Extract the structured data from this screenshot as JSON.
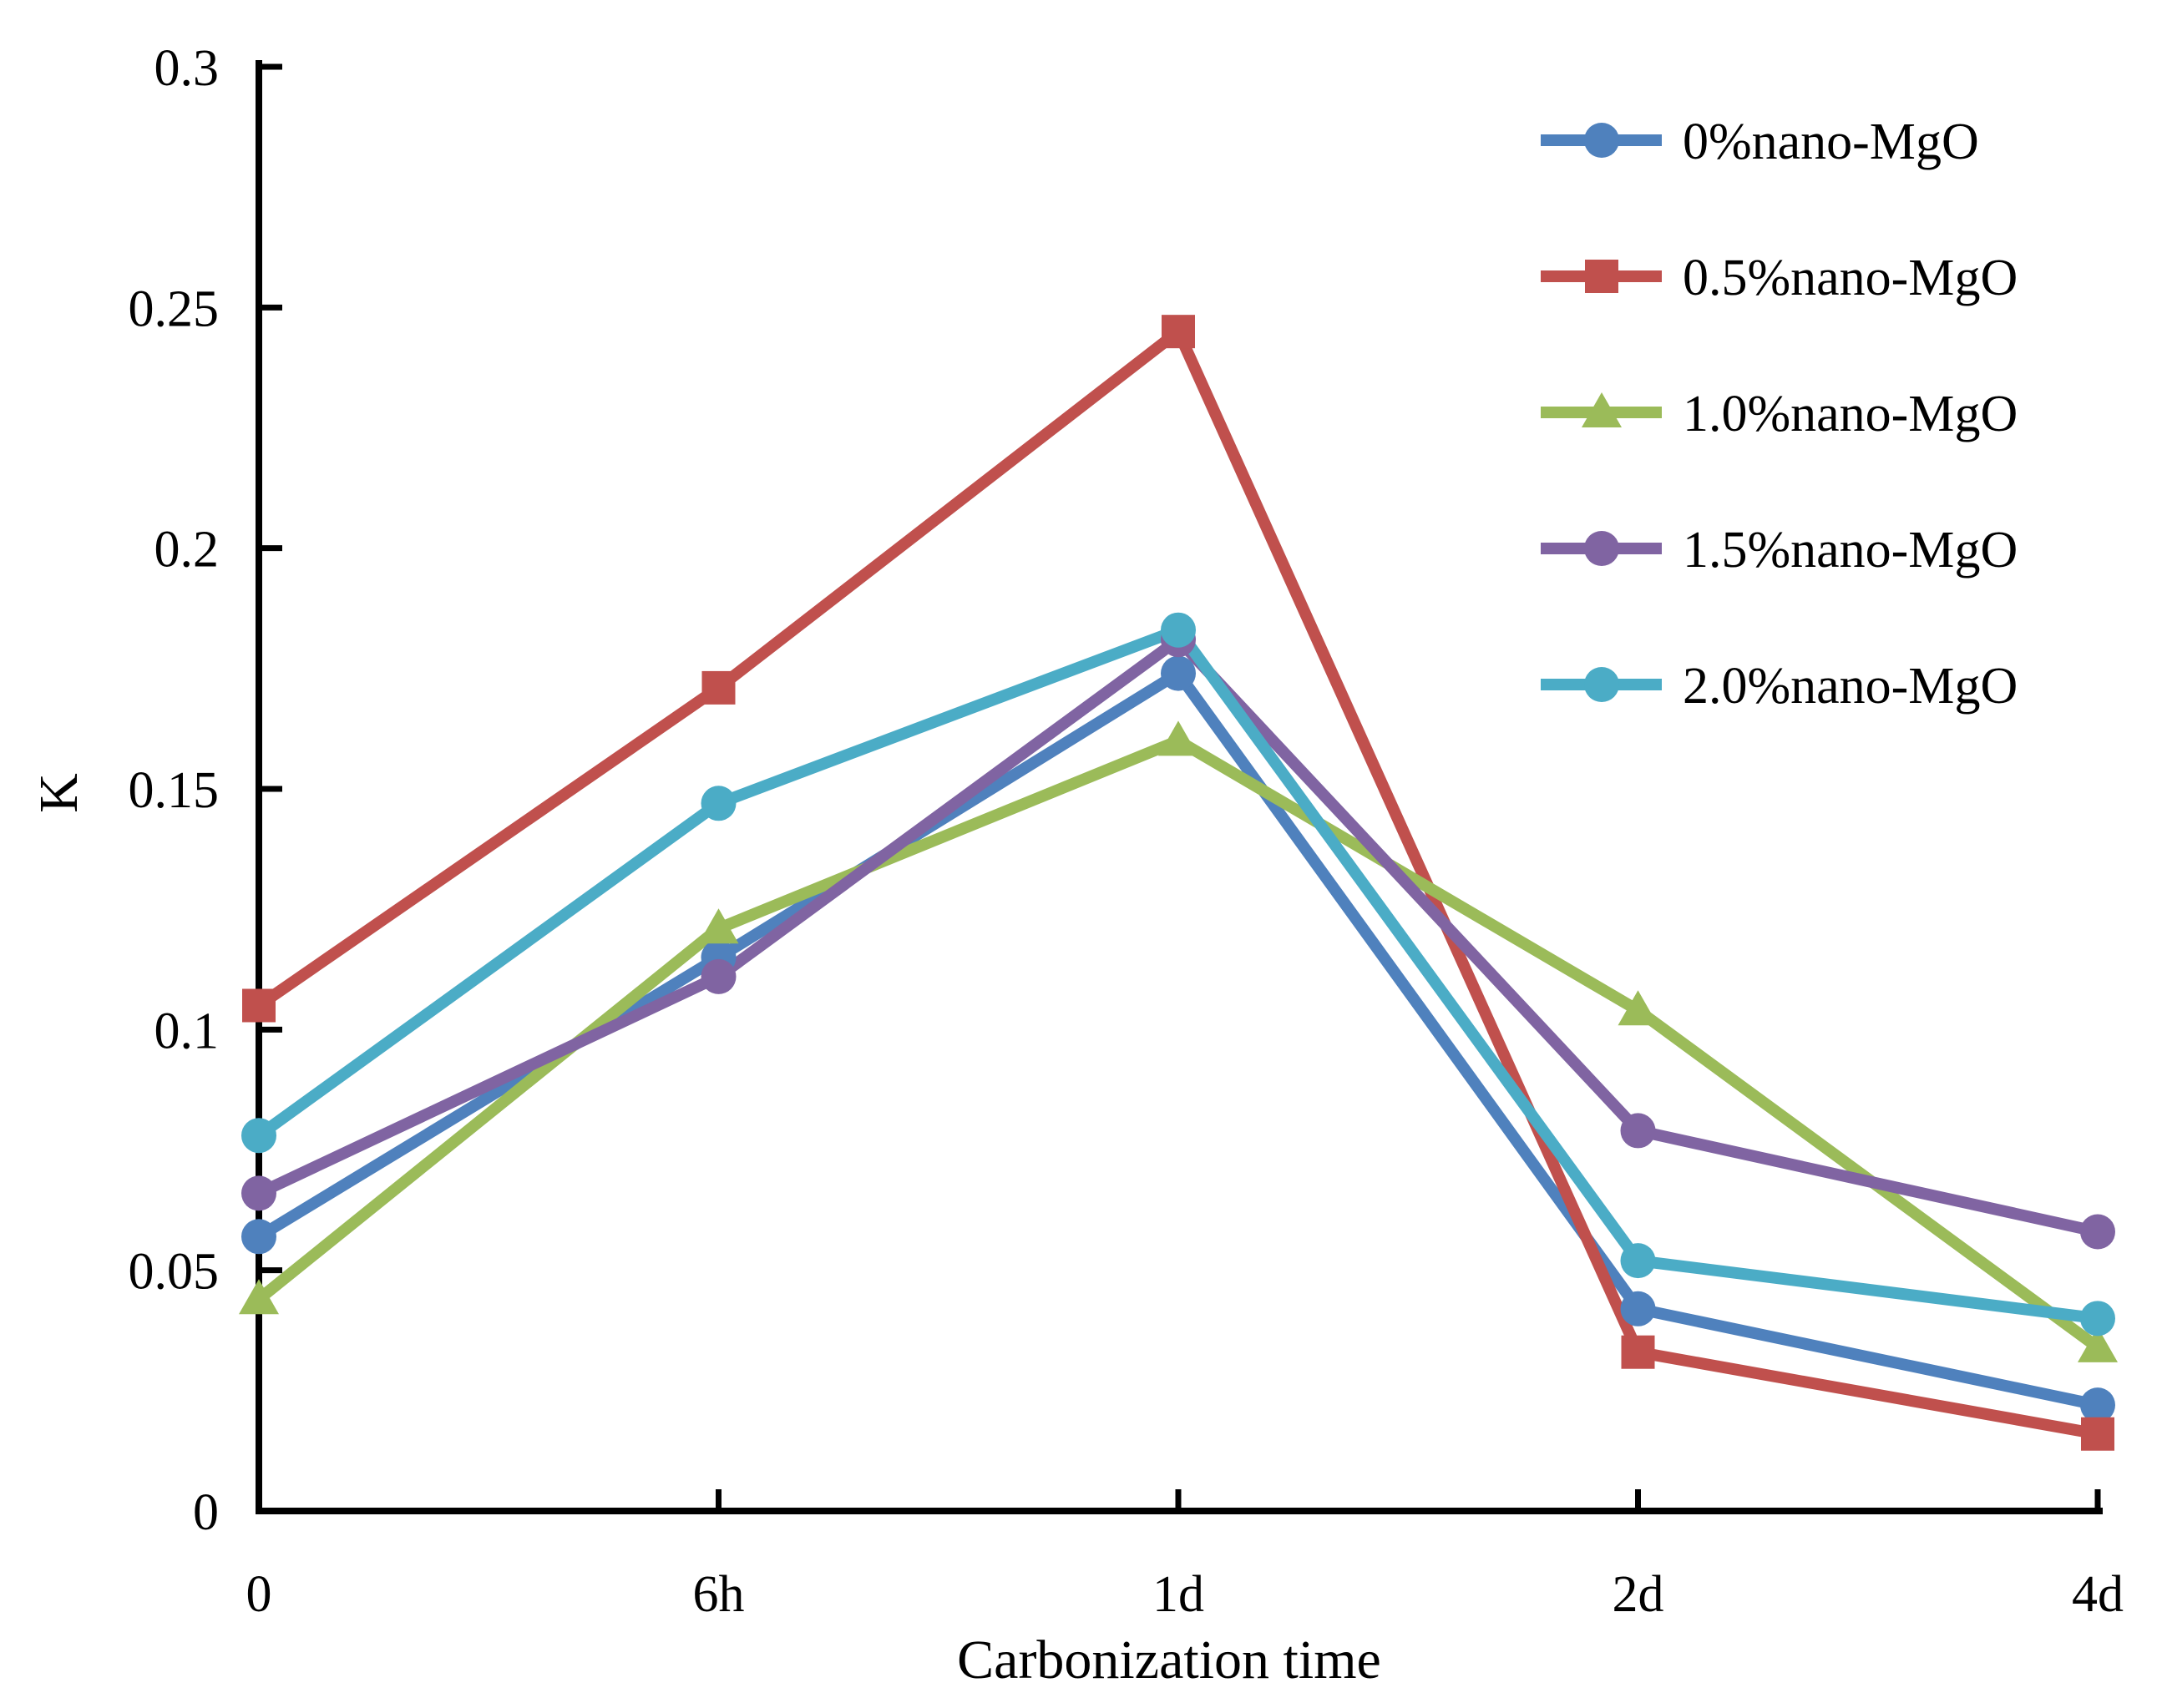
{
  "chart_data": {
    "type": "line",
    "title": "",
    "xlabel": "Carbonization time",
    "ylabel": "K",
    "categories": [
      "0",
      "6h",
      "1d",
      "2d",
      "4d"
    ],
    "ylim": [
      0,
      0.3
    ],
    "yticks": [
      "0",
      "0.05",
      "0.1",
      "0.15",
      "0.2",
      "0.25",
      "0.3"
    ],
    "grid": false,
    "legend_position": "top-right",
    "series": [
      {
        "name": "0%nano-MgO",
        "color": "#4F81BD",
        "marker": "circle",
        "values": [
          0.057,
          0.115,
          0.174,
          0.042,
          0.022
        ]
      },
      {
        "name": "0.5%nano-MgO",
        "color": "#C0504D",
        "marker": "square",
        "values": [
          0.105,
          0.171,
          0.245,
          0.033,
          0.016
        ]
      },
      {
        "name": "1.0%nano-MgO",
        "color": "#9BBB59",
        "marker": "triangle",
        "values": [
          0.044,
          0.121,
          0.16,
          0.104,
          0.034
        ]
      },
      {
        "name": "1.5%nano-MgO",
        "color": "#8064A2",
        "marker": "circle",
        "values": [
          0.066,
          0.111,
          0.181,
          0.079,
          0.058
        ]
      },
      {
        "name": "2.0%nano-MgO",
        "color": "#4BACC6",
        "marker": "circle",
        "values": [
          0.078,
          0.147,
          0.183,
          0.052,
          0.04
        ]
      }
    ]
  }
}
